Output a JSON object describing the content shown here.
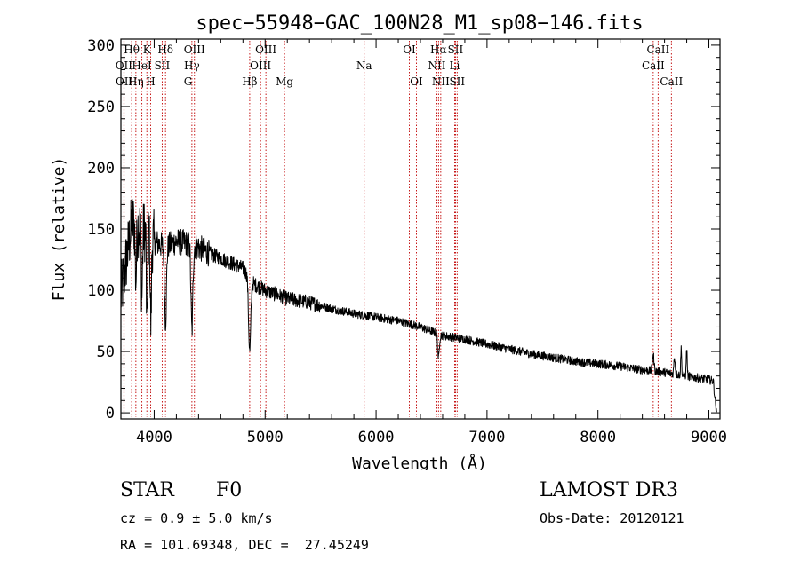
{
  "chart_data": {
    "type": "line",
    "title": "spec−55948−GAC_100N28_M1_sp08−146.fits",
    "xlabel": "Wavelength (Å)",
    "ylabel": "Flux (relative)",
    "xlim": [
      3700,
      9100
    ],
    "ylim": [
      -5,
      305
    ],
    "xticks": [
      4000,
      5000,
      6000,
      7000,
      8000,
      9000
    ],
    "yticks": [
      0,
      50,
      100,
      150,
      200,
      250,
      300
    ],
    "grid": false,
    "line_color": "#000000",
    "marker_color": "#c00000",
    "continuum": {
      "x": [
        3700,
        3800,
        3900,
        4000,
        4100,
        4200,
        4300,
        4400,
        4500,
        4600,
        4700,
        4800,
        4900,
        5000,
        5200,
        5400,
        5600,
        5800,
        6000,
        6200,
        6400,
        6600,
        6800,
        7000,
        7200,
        7400,
        7600,
        7800,
        8000,
        8200,
        8400,
        8600,
        8800,
        9000,
        9070
      ],
      "y": [
        95,
        155,
        150,
        140,
        135,
        140,
        138,
        135,
        130,
        126,
        122,
        118,
        105,
        100,
        93,
        90,
        85,
        81,
        78,
        75,
        70,
        63,
        60,
        56,
        52,
        48,
        45,
        42,
        40,
        38,
        35,
        33,
        30,
        27,
        25
      ]
    },
    "absorption_features": [
      {
        "x": 3835,
        "depth": 45,
        "width": 8
      },
      {
        "x": 3889,
        "depth": 55,
        "width": 8
      },
      {
        "x": 3934,
        "depth": 85,
        "width": 6
      },
      {
        "x": 3970,
        "depth": 70,
        "width": 8
      },
      {
        "x": 4102,
        "depth": 60,
        "width": 12
      },
      {
        "x": 4340,
        "depth": 70,
        "width": 12
      },
      {
        "x": 4861,
        "depth": 60,
        "width": 14
      },
      {
        "x": 6563,
        "depth": 20,
        "width": 10
      }
    ],
    "emission_features": [
      {
        "x": 8498,
        "height": 14,
        "width": 10
      },
      {
        "x": 8690,
        "height": 14,
        "width": 8
      },
      {
        "x": 8750,
        "height": 22,
        "width": 6
      },
      {
        "x": 8800,
        "height": 22,
        "width": 6
      }
    ],
    "line_markers": [
      {
        "label": "Hθ",
        "x": 3797,
        "row": 0
      },
      {
        "label": "OII",
        "x": 3727,
        "row": 1
      },
      {
        "label": "OII",
        "x": 3729,
        "row": 2
      },
      {
        "label": "K",
        "x": 3934,
        "row": 0
      },
      {
        "label": "HeI",
        "x": 3889,
        "row": 1
      },
      {
        "label": "Hη",
        "x": 3835,
        "row": 2
      },
      {
        "label": "SII",
        "x": 4072,
        "row": 1
      },
      {
        "label": "H",
        "x": 3968,
        "row": 2
      },
      {
        "label": "Hδ",
        "x": 4102,
        "row": 0
      },
      {
        "label": "OIII",
        "x": 4363,
        "row": 0
      },
      {
        "label": "Hγ",
        "x": 4340,
        "row": 1
      },
      {
        "label": "G",
        "x": 4305,
        "row": 2
      },
      {
        "label": "OIII",
        "x": 5007,
        "row": 0
      },
      {
        "label": "OIII",
        "x": 4959,
        "row": 1
      },
      {
        "label": "Hβ",
        "x": 4861,
        "row": 2
      },
      {
        "label": "Mg",
        "x": 5175,
        "row": 2
      },
      {
        "label": "Na",
        "x": 5893,
        "row": 1
      },
      {
        "label": "OI",
        "x": 6300,
        "row": 0
      },
      {
        "label": "OI",
        "x": 6364,
        "row": 2
      },
      {
        "label": "Hα",
        "x": 6563,
        "row": 0
      },
      {
        "label": "NII",
        "x": 6548,
        "row": 1
      },
      {
        "label": "NII",
        "x": 6583,
        "row": 2
      },
      {
        "label": "SII",
        "x": 6716,
        "row": 0
      },
      {
        "label": "Li",
        "x": 6708,
        "row": 1
      },
      {
        "label": "SII",
        "x": 6731,
        "row": 2
      },
      {
        "label": "CaII",
        "x": 8542,
        "row": 0
      },
      {
        "label": "CaII",
        "x": 8498,
        "row": 1
      },
      {
        "label": "CaII",
        "x": 8662,
        "row": 2
      }
    ]
  },
  "info": {
    "class_label": "STAR",
    "subclass": "F0",
    "survey": "LAMOST DR3",
    "redshift_text": "cz = 0.9 ± 5.0 km/s",
    "obs_date": "Obs-Date: 20120121",
    "coords": "RA = 101.69348, DEC =  27.45249"
  }
}
